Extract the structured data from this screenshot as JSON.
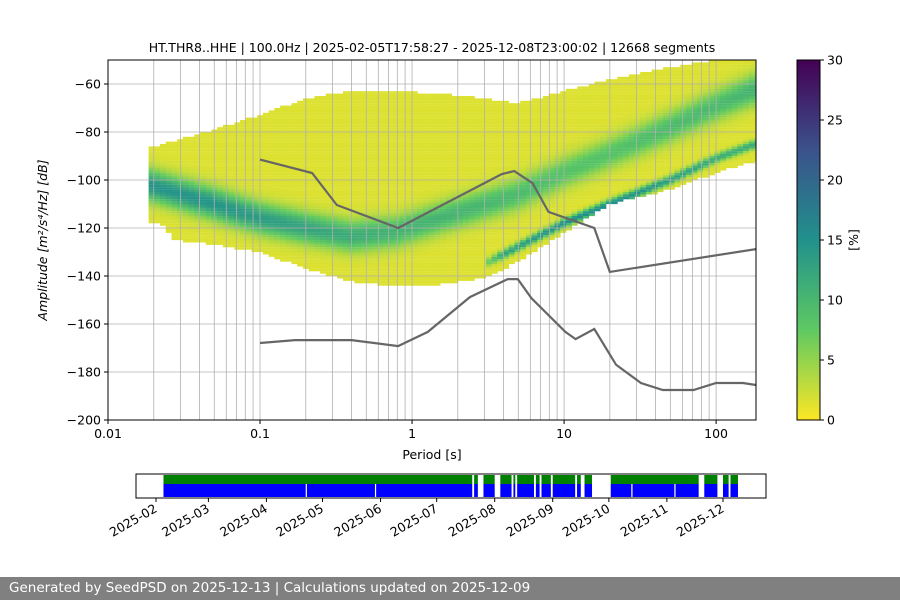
{
  "chart_data": {
    "type": "heatmap",
    "title": "HT.THR8..HHE | 100.0Hz | 2025-02-05T17:58:27 - 2025-12-08T23:00:02 | 12668 segments",
    "xlabel": "Period [s]",
    "ylabel": "Amplitude [m²/s⁴/Hz] [dB]",
    "xscale": "log",
    "xlim": [
      0.01,
      183
    ],
    "ylim": [
      -200,
      -50
    ],
    "xticks": [
      {
        "v": 0.01,
        "label": "0.01"
      },
      {
        "v": 0.1,
        "label": "0.1"
      },
      {
        "v": 1,
        "label": "1"
      },
      {
        "v": 10,
        "label": "10"
      },
      {
        "v": 100,
        "label": "100"
      }
    ],
    "yticks": [
      {
        "v": -60,
        "label": "−60"
      },
      {
        "v": -80,
        "label": "−80"
      },
      {
        "v": -100,
        "label": "−100"
      },
      {
        "v": -120,
        "label": "−120"
      },
      {
        "v": -140,
        "label": "−140"
      },
      {
        "v": -160,
        "label": "−160"
      },
      {
        "v": -180,
        "label": "−180"
      },
      {
        "v": -200,
        "label": "−200"
      }
    ],
    "grid": true,
    "colormap": "viridis_r",
    "colorbar": {
      "label": "[%]",
      "range": [
        0,
        30
      ],
      "ticks": [
        "0",
        "5",
        "10",
        "15",
        "20",
        "25",
        "30"
      ]
    },
    "distribution": {
      "base_percent": 1.5,
      "envelope": [
        {
          "period": 0.0185,
          "top": -86,
          "bottom": -118
        },
        {
          "period": 0.024,
          "top": -85,
          "bottom": -119
        },
        {
          "period": 0.026,
          "top": -84,
          "bottom": -125
        },
        {
          "period": 0.05,
          "top": -79,
          "bottom": -127
        },
        {
          "period": 0.1,
          "top": -73,
          "bottom": -130
        },
        {
          "period": 0.2,
          "top": -66,
          "bottom": -137
        },
        {
          "period": 0.4,
          "top": -63,
          "bottom": -142.5
        },
        {
          "period": 0.8,
          "top": -63,
          "bottom": -144.5
        },
        {
          "period": 1.5,
          "top": -64,
          "bottom": -143.5
        },
        {
          "period": 3,
          "top": -66,
          "bottom": -141
        },
        {
          "period": 5,
          "top": -68,
          "bottom": -134
        },
        {
          "period": 10,
          "top": -63,
          "bottom": -122
        },
        {
          "period": 20,
          "top": -58,
          "bottom": -110
        },
        {
          "period": 50,
          "top": -53,
          "bottom": -104
        },
        {
          "period": 100,
          "top": -50,
          "bottom": -97
        },
        {
          "period": 183,
          "top": -50,
          "bottom": -92
        }
      ],
      "broad_mode": [
        {
          "period": 0.0185,
          "db": -102,
          "peak_percent": 13
        },
        {
          "period": 0.05,
          "db": -110,
          "peak_percent": 13
        },
        {
          "period": 0.1,
          "db": -116,
          "peak_percent": 12
        },
        {
          "period": 0.2,
          "db": -120,
          "peak_percent": 11
        },
        {
          "period": 0.4,
          "db": -123.5,
          "peak_percent": 10
        },
        {
          "period": 0.8,
          "db": -121.5,
          "peak_percent": 9
        },
        {
          "period": 1.5,
          "db": -116,
          "peak_percent": 9
        },
        {
          "period": 5,
          "db": -106,
          "peak_percent": 8
        },
        {
          "period": 10,
          "db": -97,
          "peak_percent": 7
        },
        {
          "period": 20,
          "db": -89,
          "peak_percent": 7
        },
        {
          "period": 50,
          "db": -78,
          "peak_percent": 8
        },
        {
          "period": 100,
          "db": -69,
          "peak_percent": 8
        },
        {
          "period": 183,
          "db": -62,
          "peak_percent": 9
        }
      ],
      "narrow_mode": [
        {
          "period": 3,
          "db": -135,
          "peak_percent": 4
        },
        {
          "period": 4,
          "db": -131,
          "peak_percent": 11
        },
        {
          "period": 10,
          "db": -118,
          "peak_percent": 14
        },
        {
          "period": 20,
          "db": -110,
          "peak_percent": 14
        },
        {
          "period": 50,
          "db": -100,
          "peak_percent": 12
        },
        {
          "period": 100,
          "db": -91,
          "peak_percent": 10
        },
        {
          "period": 183,
          "db": -85,
          "peak_percent": 10
        }
      ]
    },
    "reference_curves": [
      {
        "id": "high-noise-model",
        "color": "#666666",
        "points": [
          [
            0.1,
            -91.5
          ],
          [
            0.22,
            -97.1
          ],
          [
            0.32,
            -110.4
          ],
          [
            0.81,
            -120
          ],
          [
            3.9,
            -97.5
          ],
          [
            4.7,
            -96.3
          ],
          [
            6.2,
            -101.3
          ],
          [
            7.9,
            -113.3
          ],
          [
            15.8,
            -120
          ],
          [
            20,
            -138.3
          ],
          [
            183,
            -128.8
          ]
        ]
      },
      {
        "id": "low-noise-model",
        "color": "#666666",
        "points": [
          [
            0.1,
            -167.9
          ],
          [
            0.17,
            -166.7
          ],
          [
            0.4,
            -166.7
          ],
          [
            0.81,
            -169.2
          ],
          [
            1.27,
            -163.3
          ],
          [
            2.4,
            -148.8
          ],
          [
            4.26,
            -141.3
          ],
          [
            4.96,
            -141.3
          ],
          [
            6.1,
            -149.2
          ],
          [
            10.2,
            -163.3
          ],
          [
            11.9,
            -166.3
          ],
          [
            15.8,
            -162.1
          ],
          [
            22,
            -177
          ],
          [
            32,
            -184.6
          ],
          [
            44.6,
            -187.5
          ],
          [
            71,
            -187.5
          ],
          [
            100,
            -184.6
          ],
          [
            150,
            -184.6
          ],
          [
            183,
            -185.4
          ]
        ]
      }
    ],
    "data_coverage": {
      "xticks": [
        "2025-02",
        "2025-03",
        "2025-04",
        "2025-05",
        "2025-06",
        "2025-07",
        "2025-08",
        "2025-09",
        "2025-10",
        "2025-11",
        "2025-12"
      ],
      "range": [
        "2025-02-05",
        "2025-12-09"
      ],
      "colors": {
        "green": "#008000",
        "blue": "#0000ff"
      },
      "gaps_both": [
        [
          "2025-07-20",
          "2025-07-21"
        ],
        [
          "2025-07-23",
          "2025-07-26"
        ],
        [
          "2025-08-01",
          "2025-08-04"
        ],
        [
          "2025-08-10",
          "2025-08-11"
        ],
        [
          "2025-08-12",
          "2025-08-13"
        ],
        [
          "2025-08-22",
          "2025-08-23"
        ],
        [
          "2025-08-25",
          "2025-08-26"
        ],
        [
          "2025-08-31",
          "2025-09-01"
        ],
        [
          "2025-09-13",
          "2025-09-14"
        ],
        [
          "2025-09-16",
          "2025-09-17"
        ],
        [
          "2025-09-17",
          "2025-09-18"
        ],
        [
          "2025-09-22",
          "2025-10-02"
        ],
        [
          "2025-11-18",
          "2025-11-21"
        ],
        [
          "2025-11-28",
          "2025-12-01"
        ],
        [
          "2025-12-04",
          "2025-12-05"
        ]
      ],
      "gaps_blue_only": [
        "2025-04-22",
        "2025-05-29",
        "2025-10-13",
        "2025-11-05"
      ]
    }
  },
  "footer": {
    "text": "Generated by SeedPSD on 2025-12-13 | Calculations updated on 2025-12-09"
  }
}
